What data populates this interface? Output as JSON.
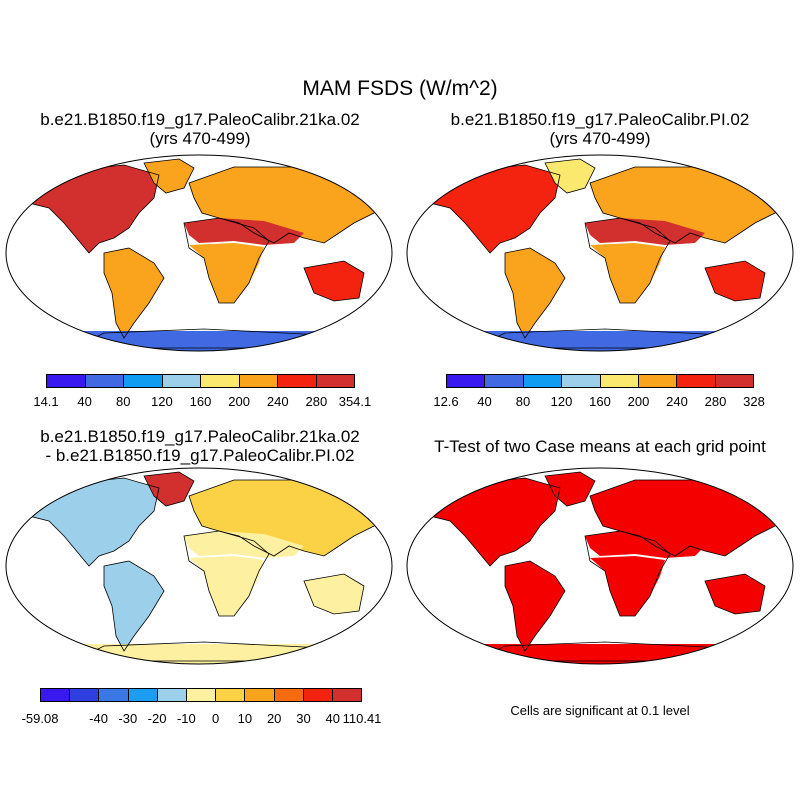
{
  "title": "MAM FSDS (W/m^2)",
  "panels": [
    {
      "id": "p1",
      "title_line1": "b.e21.B1850.f19_g17.PaleoCalibr.21ka.02",
      "title_line2": "(yrs 470-499)"
    },
    {
      "id": "p2",
      "title_line1": "b.e21.B1850.f19_g17.PaleoCalibr.PI.02",
      "title_line2": "(yrs 470-499)"
    },
    {
      "id": "p3",
      "title_line1": "b.e21.B1850.f19_g17.PaleoCalibr.21ka.02",
      "title_line2": "- b.e21.B1850.f19_g17.PaleoCalibr.PI.02"
    },
    {
      "id": "p4",
      "title_line1": "T-Test of two Case means at each grid point"
    }
  ],
  "colorbars": {
    "abs1": {
      "colors": [
        "#3a18f0",
        "#4169e1",
        "#109cf0",
        "#9ccfea",
        "#fbe96f",
        "#f9a41c",
        "#f4230f",
        "#d22f2f"
      ],
      "labels": [
        "14.1",
        "40",
        "80",
        "120",
        "160",
        "200",
        "240",
        "280",
        "354.1"
      ]
    },
    "abs2": {
      "colors": [
        "#3a18f0",
        "#4169e1",
        "#109cf0",
        "#9ccfea",
        "#fbe96f",
        "#f9a41c",
        "#f4230f",
        "#d22f2f"
      ],
      "labels": [
        "12.6",
        "40",
        "80",
        "120",
        "160",
        "200",
        "240",
        "280",
        "328"
      ]
    },
    "diff": {
      "colors": [
        "#3a18f0",
        "#2f3fe0",
        "#3a78e6",
        "#1c9cf2",
        "#9ccfea",
        "#fdf0a0",
        "#fbd245",
        "#f9a41c",
        "#f66a10",
        "#f4230f",
        "#d22f2f"
      ],
      "labels": [
        "-59.08",
        "-40",
        "-30",
        "-20",
        "-10",
        "0",
        "10",
        "20",
        "30",
        "40",
        "110.41"
      ],
      "label_slots": [
        0,
        2,
        3,
        4,
        5,
        6,
        7,
        8,
        9,
        10,
        11
      ]
    }
  },
  "significance_note": "Cells are significant at 0.1 level",
  "map_fill": {
    "p1": {
      "north_america": "#d22f2f",
      "greenland_ice": "#f9a41c",
      "sahara": "#d22f2f",
      "eurasia": "#f9a41c",
      "south_america": "#f9a41c",
      "africa": "#f9a41c",
      "australia": "#f4230f",
      "antarctica": "#4169e1"
    },
    "p2": {
      "north_america": "#f4230f",
      "greenland_ice": "#fbe96f",
      "sahara": "#d22f2f",
      "eurasia": "#f9a41c",
      "south_america": "#f9a41c",
      "africa": "#f9a41c",
      "australia": "#f4230f",
      "antarctica": "#4169e1"
    },
    "p3": {
      "north_america": "#9ccfea",
      "greenland_ice": "#d22f2f",
      "sahara": "#fdf0a0",
      "eurasia": "#fbd245",
      "south_america": "#9ccfea",
      "africa": "#fdf0a0",
      "australia": "#fdf0a0",
      "antarctica": "#fdf0a0"
    },
    "p4": {
      "north_america": "#f40000",
      "greenland_ice": "#f40000",
      "sahara": "#f40000",
      "eurasia": "#f40000",
      "south_america": "#f40000",
      "africa": "#f40000",
      "australia": "#f40000",
      "antarctica": "#f40000"
    }
  }
}
